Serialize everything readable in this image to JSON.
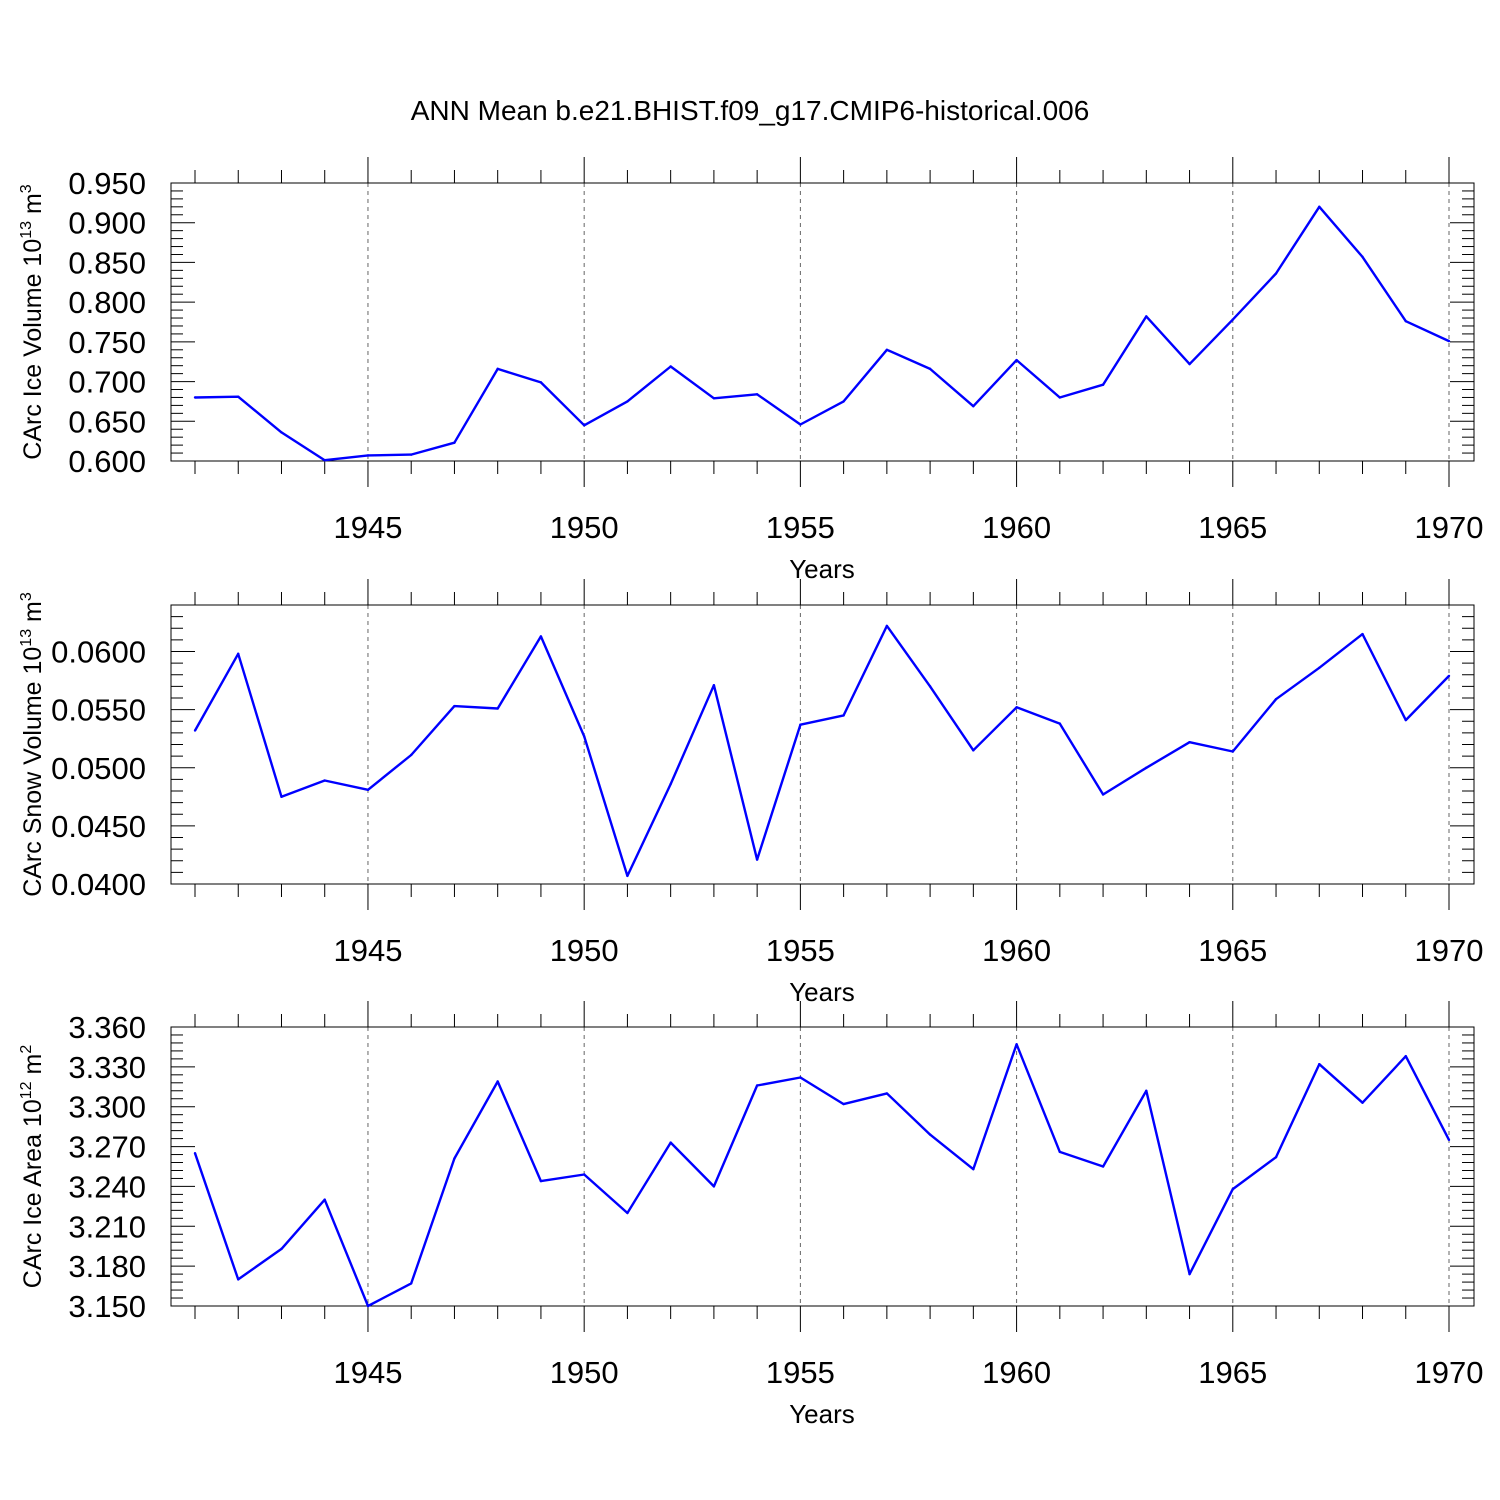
{
  "chart_data": {
    "type": "line",
    "title": "ANN Mean b.e21.BHIST.f09_g17.CMIP6-historical.006",
    "line_color": "#0000ff",
    "x": [
      1941,
      1942,
      1943,
      1944,
      1945,
      1946,
      1947,
      1948,
      1949,
      1950,
      1951,
      1952,
      1953,
      1954,
      1955,
      1956,
      1957,
      1958,
      1959,
      1960,
      1961,
      1962,
      1963,
      1964,
      1965,
      1966,
      1967,
      1968,
      1969,
      1970
    ],
    "xlim": [
      1941,
      1970
    ],
    "xticks": [
      1945,
      1950,
      1955,
      1960,
      1965,
      1970
    ],
    "xtick_labels": [
      "1945",
      "1950",
      "1955",
      "1960",
      "1965",
      "1970"
    ],
    "panels": [
      {
        "name": "ice-volume",
        "ylabel_main": "CArc Ice Volume 10",
        "ylabel_exp": "13",
        "ylabel_unit": " m",
        "ylabel_unit_exp": "3",
        "xlabel": "Years",
        "ylim": [
          0.6,
          0.95
        ],
        "yticks": [
          0.6,
          0.65,
          0.7,
          0.75,
          0.8,
          0.85,
          0.9,
          0.95
        ],
        "ytick_labels": [
          "0.600",
          "0.650",
          "0.700",
          "0.750",
          "0.800",
          "0.850",
          "0.900",
          "0.950"
        ],
        "values": [
          0.68,
          0.681,
          0.636,
          0.601,
          0.607,
          0.608,
          0.623,
          0.716,
          0.699,
          0.645,
          0.675,
          0.719,
          0.679,
          0.684,
          0.646,
          0.675,
          0.74,
          0.716,
          0.669,
          0.727,
          0.68,
          0.696,
          0.782,
          0.722,
          0.778,
          0.836,
          0.92,
          0.857,
          0.776,
          0.751
        ]
      },
      {
        "name": "snow-volume",
        "ylabel_main": "CArc Snow Volume 10",
        "ylabel_exp": "13",
        "ylabel_unit": " m",
        "ylabel_unit_exp": "3",
        "xlabel": "Years",
        "ylim": [
          0.04,
          0.064
        ],
        "yticks": [
          0.04,
          0.045,
          0.05,
          0.055,
          0.06
        ],
        "ytick_labels": [
          "0.0400",
          "0.0450",
          "0.0500",
          "0.0550",
          "0.0600"
        ],
        "values": [
          0.0532,
          0.0598,
          0.0475,
          0.0489,
          0.0481,
          0.0511,
          0.0553,
          0.0551,
          0.0613,
          0.0527,
          0.0407,
          0.0486,
          0.0571,
          0.0421,
          0.0537,
          0.0545,
          0.0622,
          0.057,
          0.0515,
          0.0552,
          0.0538,
          0.0477,
          0.05,
          0.0522,
          0.0514,
          0.0559,
          0.0586,
          0.0615,
          0.0541,
          0.0579
        ]
      },
      {
        "name": "ice-area",
        "ylabel_main": "CArc Ice Area 10",
        "ylabel_exp": "12",
        "ylabel_unit": " m",
        "ylabel_unit_exp": "2",
        "xlabel": "Years",
        "ylim": [
          3.15,
          3.36
        ],
        "yticks": [
          3.15,
          3.18,
          3.21,
          3.24,
          3.27,
          3.3,
          3.33,
          3.36
        ],
        "ytick_labels": [
          "3.150",
          "3.180",
          "3.210",
          "3.240",
          "3.270",
          "3.300",
          "3.330",
          "3.360"
        ],
        "values": [
          3.265,
          3.17,
          3.193,
          3.23,
          3.15,
          3.167,
          3.261,
          3.319,
          3.244,
          3.249,
          3.22,
          3.273,
          3.24,
          3.316,
          3.322,
          3.302,
          3.31,
          3.279,
          3.253,
          3.347,
          3.266,
          3.255,
          3.312,
          3.174,
          3.238,
          3.262,
          3.332,
          3.303,
          3.338,
          3.275
        ]
      }
    ]
  }
}
